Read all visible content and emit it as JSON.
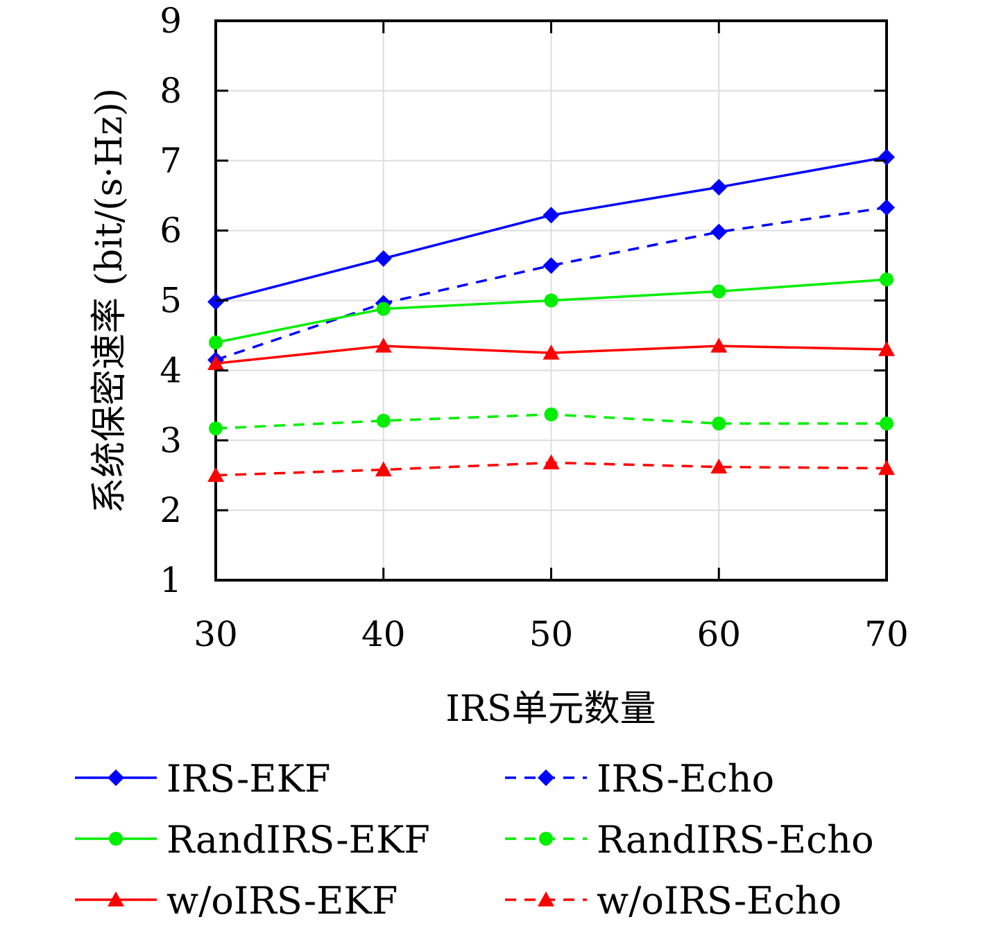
{
  "chart_data": {
    "type": "line",
    "title": "",
    "xlabel": "IRS单元数量",
    "ylabel": "系统保密速率 (bit/(s·Hz))",
    "x": [
      30,
      40,
      50,
      60,
      70
    ],
    "xlim": [
      30,
      70
    ],
    "ylim": [
      1,
      9
    ],
    "xticks": [
      "30",
      "40",
      "50",
      "60",
      "70"
    ],
    "yticks": [
      "1",
      "2",
      "3",
      "4",
      "5",
      "6",
      "7",
      "8",
      "9"
    ],
    "grid": true,
    "legend_position": "bottom",
    "series": [
      {
        "name": "IRS-EKF",
        "color": "#0000ff",
        "style": "solid",
        "marker": "diamond",
        "values": [
          4.98,
          5.6,
          6.22,
          6.62,
          7.05
        ]
      },
      {
        "name": "IRS-Echo",
        "color": "#0000ff",
        "style": "dashed",
        "marker": "diamond",
        "values": [
          4.15,
          4.96,
          5.5,
          5.98,
          6.33
        ]
      },
      {
        "name": "RandIRS-EKF",
        "color": "#00ee00",
        "style": "solid",
        "marker": "circle",
        "values": [
          4.4,
          4.88,
          5.0,
          5.13,
          5.3
        ]
      },
      {
        "name": "RandIRS-Echo",
        "color": "#00ee00",
        "style": "dashed",
        "marker": "circle",
        "values": [
          3.17,
          3.28,
          3.37,
          3.24,
          3.24
        ]
      },
      {
        "name": "w/oIRS-EKF",
        "color": "#ff0000",
        "style": "solid",
        "marker": "triangle",
        "values": [
          4.1,
          4.35,
          4.25,
          4.35,
          4.3
        ]
      },
      {
        "name": "w/oIRS-Echo",
        "color": "#ff0000",
        "style": "dashed",
        "marker": "triangle",
        "values": [
          2.5,
          2.58,
          2.68,
          2.62,
          2.6
        ]
      }
    ]
  }
}
